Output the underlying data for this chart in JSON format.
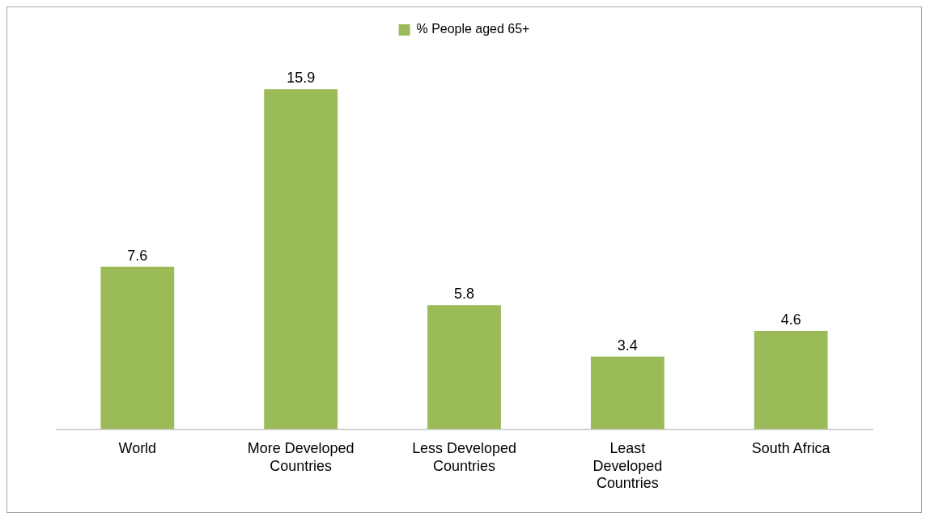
{
  "chart_data": {
    "type": "bar",
    "categories": [
      "World",
      "More Developed Countries",
      "Less Developed Countries",
      "Least Developed Countries",
      "South Africa"
    ],
    "series": [
      {
        "name": "% People aged 65+",
        "color": "#9bbb59",
        "values": [
          7.6,
          15.9,
          5.8,
          3.4,
          4.6
        ]
      }
    ],
    "data_labels": true,
    "legend": "top",
    "grid": false
  }
}
